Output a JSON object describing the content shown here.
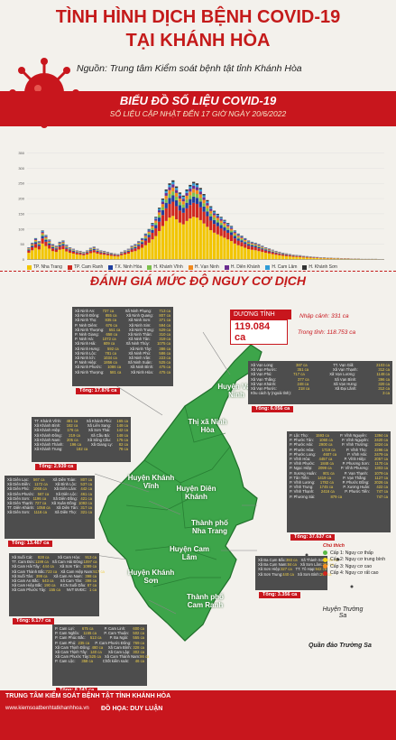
{
  "header": {
    "title_line1": "TÌNH HÌNH DỊCH BỆNH COVID-19",
    "title_line2": "TẠI KHÁNH HÒA",
    "source": "Nguồn: Trung tâm Kiểm soát bệnh tật tỉnh Khánh Hòa"
  },
  "chart_section": {
    "title": "BIỂU ĐỒ SỐ LIỆU COVID-19",
    "subtitle": "SỐ LIỆU CẬP NHẬT ĐẾN 17 GIỜ NGÀY 20/6/2022"
  },
  "chart_data": {
    "type": "bar",
    "stacked": true,
    "ylim": [
      0,
      350
    ],
    "yticks": [
      "350",
      "300",
      "250",
      "200",
      "150",
      "100",
      "50",
      "0"
    ],
    "series": [
      {
        "name": "TP. Nha Trang",
        "color": "#f2c500"
      },
      {
        "name": "TP. Cam Ranh",
        "color": "#d0281f"
      },
      {
        "name": "TX. Ninh Hòa",
        "color": "#1f3f9e"
      },
      {
        "name": "H. Khánh Vĩnh",
        "color": "#7cc04b"
      },
      {
        "name": "H. Vạn Ninh",
        "color": "#f18a1e"
      },
      {
        "name": "H. Diên Khánh",
        "color": "#6b2d8f"
      },
      {
        "name": "H. Cam Lâm",
        "color": "#2f9bd6"
      },
      {
        "name": "H. Khánh Sơn",
        "color": "#333333"
      }
    ],
    "totals": [
      40,
      55,
      70,
      60,
      95,
      80,
      65,
      50,
      45,
      58,
      62,
      48,
      40,
      35,
      30,
      28,
      25,
      30,
      38,
      42,
      35,
      30,
      28,
      25,
      22,
      20,
      18,
      25,
      30,
      35,
      45,
      50,
      60,
      70,
      85,
      100,
      120,
      140,
      170,
      200,
      230,
      250,
      260,
      240,
      220,
      210,
      230,
      245,
      255,
      250,
      235,
      215,
      195,
      175,
      160,
      150,
      140,
      130,
      120,
      110,
      95,
      85,
      78,
      70,
      62,
      58,
      55,
      50,
      45,
      40,
      36,
      32,
      28,
      25,
      22,
      20,
      18,
      16,
      15,
      14,
      12,
      11,
      10,
      9,
      8,
      7,
      7,
      6,
      6,
      5,
      5,
      4,
      4,
      4,
      3,
      3,
      3,
      2,
      2,
      2,
      2,
      2,
      1,
      1
    ]
  },
  "risk_section": {
    "title": "ĐÁNH GIÁ MỨC ĐỘ NGUY CƠ DỊCH"
  },
  "stats": {
    "label": "DƯƠNG TÍNH",
    "total": "119.084 ca",
    "imported": "Nhập cảnh: 331 ca",
    "community": "Trong tỉnh: 118.753 ca"
  },
  "places": [
    {
      "name": "Huyện Vạn Ninh"
    },
    {
      "name": "Thị xã Ninh Hòa"
    },
    {
      "name": "Huyện Khánh Vĩnh"
    },
    {
      "name": "Huyện Diên Khánh"
    },
    {
      "name": "Thành phố Nha Trang"
    },
    {
      "name": "Huyện Cam Lâm"
    },
    {
      "name": "Huyện Khánh Sơn"
    },
    {
      "name": "Thành phố Cam Ranh"
    }
  ],
  "islands": {
    "truong_sa": "Huyện Trường Sa",
    "quan_dao": "Quần đảo Trường Sa"
  },
  "boxes": {
    "ninh_hoa": {
      "total": "Tổng: 17.876 ca",
      "rows": [
        [
          "Xã Ninh An:",
          "737 ca",
          "Xã Ninh Phụng:",
          "713 ca"
        ],
        [
          "Xã Ninh Đông:",
          "855 ca",
          "Xã Ninh Quang:",
          "807 ca"
        ],
        [
          "Xã Ninh Thọ:",
          "835 ca",
          "Xã Ninh Sơn:",
          "371 ca"
        ],
        [
          "P. Ninh Diêm:",
          "676 ca",
          "Xã Ninh Sim:",
          "594 ca"
        ],
        [
          "Xã Ninh Thượng:",
          "551 ca",
          "Xã Ninh Trung:",
          "529 ca"
        ],
        [
          "P. Ninh Giang:",
          "658 ca",
          "Xã Ninh Thân:",
          "310 ca"
        ],
        [
          "P. Ninh Hà:",
          "1072 ca",
          "Xã Ninh Tân:",
          "319 ca"
        ],
        [
          "Xã Ninh Hải:",
          "609 ca",
          "Xã Ninh Thủy:",
          "1075 ca"
        ],
        [
          "Xã Ninh Hưng:",
          "592 ca",
          "Xã Ninh Tây:",
          "386 ca"
        ],
        [
          "Xã Ninh Lộc:",
          "781 ca",
          "Xã Ninh Phú:",
          "586 ca"
        ],
        [
          "Xã Ninh Ích:",
          "1034 ca",
          "Xã Ninh Vân:",
          "223 ca"
        ],
        [
          "P. Ninh Hiệp:",
          "1856 ca",
          "Xã Ninh Xuân:",
          "525 ca"
        ],
        [
          "Xã Ninh Phước:",
          "1086 ca",
          "Xã Ninh Bình:",
          "475 ca"
        ],
        [
          "Xã Ninh Thượng:",
          "581 ca",
          "Xã Ninh Hòa:",
          "475 ca"
        ]
      ]
    },
    "van_ninh": {
      "total": "Tổng: 6.056 ca",
      "rows": [
        [
          "Xã Vạn Long:",
          "387 ca",
          "TT. Vạn Giã:",
          "2103 ca"
        ],
        [
          "Xã Vạn Phước:",
          "351 ca",
          "Xã Vạn Thạnh:",
          "312 ca"
        ],
        [
          "Xã Vạn Phú:",
          "717 ca",
          "Xã Vạn Lương:",
          "1148 ca"
        ],
        [
          "Xã Vạn Thắng:",
          "377 ca",
          "Xã Vạn Bình:",
          "396 ca"
        ],
        [
          "Xã Vạn Khánh:",
          "248 ca",
          "Xã Vạn Hưng:",
          "320 ca"
        ],
        [
          "Xã Vạn Phước:",
          "218 ca",
          "Xã Đại Lãnh:",
          "312 ca"
        ],
        [
          "Khu cách ly (ngoài tỉnh):",
          "",
          "",
          "3 ca"
        ]
      ]
    },
    "khanh_vinh": {
      "total": "Tổng: 2.939 ca",
      "rows": [
        [
          "TT. Khánh Vĩnh:",
          "481 ca",
          "Xã Khánh Phú:",
          "165 ca"
        ],
        [
          "Xã Khánh Bình:",
          "182 ca",
          "Xã Liên Sang:",
          "148 ca"
        ],
        [
          "Xã Khánh Hiệp:",
          "176 ca",
          "Xã Sơn Thái:",
          "142 ca"
        ],
        [
          "Xã Khánh Đông:",
          "219 ca",
          "Xã Cầu Bà:",
          "148 ca"
        ],
        [
          "Xã Khánh Nam:",
          "205 ca",
          "Xã Sông Cầu:",
          "175 ca"
        ],
        [
          "Xã Khánh Thành:",
          "196 ca",
          "Xã Giang Ly:",
          "82 ca"
        ],
        [
          "Xã Khánh Trung:",
          "182 ca",
          "",
          "78 ca"
        ]
      ]
    },
    "dien_khanh": {
      "total": "Tổng: 13.467 ca",
      "rows": [
        [
          "Xã Diên Lạc:",
          "567 ca",
          "Xã Diên Toàn:",
          "807 ca"
        ],
        [
          "Xã Diên Điền:",
          "1172 ca",
          "Xã Bình Lộc:",
          "537 ca"
        ],
        [
          "Xã Diên Phú:",
          "1068 ca",
          "Xã Diên Lâm:",
          "442 ca"
        ],
        [
          "Xã Diên Phước:",
          "567 ca",
          "Xã Diên Lộc:",
          "461 ca"
        ],
        [
          "Xã Diên Sơn:",
          "1196 ca",
          "Xã Diên Đồng:",
          "421 ca"
        ],
        [
          "Xã Diên Thạnh:",
          "727 ca",
          "Xã Xuân Đồng:",
          "1092 ca"
        ],
        [
          "TT. Diên Khánh:",
          "1058 ca",
          "Xã Diên Tân:",
          "317 ca"
        ],
        [
          "Xã Diên Sơn:",
          "1116 ca",
          "Xã Diên Thọ:",
          "321 ca"
        ]
      ]
    },
    "nha_trang": {
      "total": "Tổng: 37.637 ca",
      "rows": [
        [
          "P. Lộc Thọ:",
          "1593 ca",
          "P. Vĩnh Nguyên:",
          "1394 ca"
        ],
        [
          "P. Phước Tân:",
          "1060 ca",
          "P. Vĩnh Nguyên:",
          "2420 ca"
        ],
        [
          "P. Phước Hải:",
          "2900 ca",
          "P. Vĩnh Trường:",
          "1824 ca"
        ],
        [
          "P. Phước Hòa:",
          "1719 ca",
          "P. Vĩnh Thọ:",
          "2296 ca"
        ],
        [
          "P. Phước Long:",
          "4607 ca",
          "P. Vĩnh Hải:",
          "2479 ca"
        ],
        [
          "P. Vĩnh Hòa:",
          "4457 ca",
          "P. Vĩnh Hiệp:",
          "2057 ca"
        ],
        [
          "P. Vĩnh Phước:",
          "1848 ca",
          "P. Phương Sơn:",
          "1170 ca"
        ],
        [
          "P. Ngọc Hiệp:",
          "2099 ca",
          "P. Vĩnh Phương:",
          "1303 ca"
        ],
        [
          "P. Xương Huân:",
          "801 ca",
          "P. Vạn Thạnh:",
          "1079 ca"
        ],
        [
          "P. Tân Tiến:",
          "1419 ca",
          "P. Vạn Thắng:",
          "1127 ca"
        ],
        [
          "P. Vĩnh Lương:",
          "1782 ca",
          "P. Phước Đồng:",
          "2026 ca"
        ],
        [
          "P. Vĩnh Trung:",
          "1745 ca",
          "P. Xương Huân:",
          "422 ca"
        ],
        [
          "P. Vĩnh Thạnh:",
          "2416 ca",
          "P. Phước Tiến:",
          "747 ca"
        ],
        [
          "P. Phương Sài:",
          "879 ca",
          "",
          "747 ca"
        ]
      ]
    },
    "khanh_son": {
      "total": "Tổng: 3.356 ca",
      "rows": [
        [
          "Xã Ba Cụm Bắc:",
          "393 ca",
          "Xã Thành Sơn:",
          "235 ca"
        ],
        [
          "Xã Ba Cụm Nam:",
          "84 ca",
          "Xã Sơn Lâm:",
          "252 ca"
        ],
        [
          "Xã Sơn Hiệp:",
          "327 ca",
          "TT. Tô Hạp:",
          "942 ca"
        ],
        [
          "Xã Sơn Trung:",
          "440 ca",
          "Xã Sơn Bình:",
          "295 ca"
        ]
      ]
    },
    "cam_lam": {
      "total": "Tổng: 9.177 ca",
      "rows": [
        [
          "Xã Suối Cát:",
          "828 ca",
          "Xã Cam Hòa:",
          "913 ca"
        ],
        [
          "TT. Cam Đức:",
          "1199 ca",
          "Xã Cam Hải Đông:",
          "1097 ca"
        ],
        [
          "Xã Cam Hải Tây:",
          "444 ca",
          "Xã Sơn Tân:",
          "1099 ca"
        ],
        [
          "Xã Cam Thành Bắc:",
          "723 ca",
          "Xã Cam Hiệp Nam:",
          "517 ca"
        ],
        [
          "Xã Suối Tân:",
          "399 ca",
          "Xã Cam An Nam:",
          "398 ca"
        ],
        [
          "Xã Cam An Bắc:",
          "543 ca",
          "Xã Cam Tân:",
          "398 ca"
        ],
        [
          "Xã Cam Hiệp Bắc:",
          "190 ca",
          "KCN Suối Dầu:",
          "87 ca"
        ],
        [
          "Xã Cam Phước Tây:",
          "155 ca",
          "NVT BVĐC:",
          "1 ca"
        ]
      ]
    },
    "cam_ranh": {
      "total": "Tổng: 8.243 ca",
      "rows": [
        [
          "P. Cam Lợi:",
          "675 ca",
          "P. Cam Linh:",
          "600 ca"
        ],
        [
          "P. Cam Nghĩa:",
          "1155 ca",
          "P. Cam Thuận:",
          "502 ca"
        ],
        [
          "P. Cam Phúc Bắc:",
          "513 ca",
          "P. Ba Ngòi:",
          "555 ca"
        ],
        [
          "P. Cam Phú:",
          "235 ca",
          "P. Cam Phước Đông:",
          "769 ca"
        ],
        [
          "Xã Cam Thịnh Đông:",
          "480 ca",
          "Xã Cam Bình:",
          "328 ca"
        ],
        [
          "Xã Cam Thịnh Tây:",
          "140 ca",
          "Xã Cam Lập:",
          "302 ca"
        ],
        [
          "Xã Cam Phước Tây:",
          "525 ca",
          "Xã Cam Thành Nam:",
          "86 ca"
        ],
        [
          "P. Cam Lộc:",
          "358 ca",
          "Chốt kiểm soát:",
          "46 ca"
        ]
      ]
    }
  },
  "risk_legend": {
    "title": "Chú thích",
    "items": [
      {
        "label": "Cấp 1: Nguy cơ thấp",
        "color": "#59b945"
      },
      {
        "label": "Cấp 2: Nguy cơ trung bình",
        "color": "#f2d219"
      },
      {
        "label": "Cấp 3: Nguy cơ cao",
        "color": "#f18a1e"
      },
      {
        "label": "Cấp 4: Nguy cơ rất cao",
        "color": "#d0281f"
      }
    ]
  },
  "footer": {
    "org": "TRUNG TÂM KIỂM SOÁT BỆNH TẬT TỈNH KHÁNH HÒA",
    "site": "www.kiemsoatbenhtatkhanhhoa.vn",
    "design": "ĐỒ HỌA: DUY LUẬN"
  }
}
